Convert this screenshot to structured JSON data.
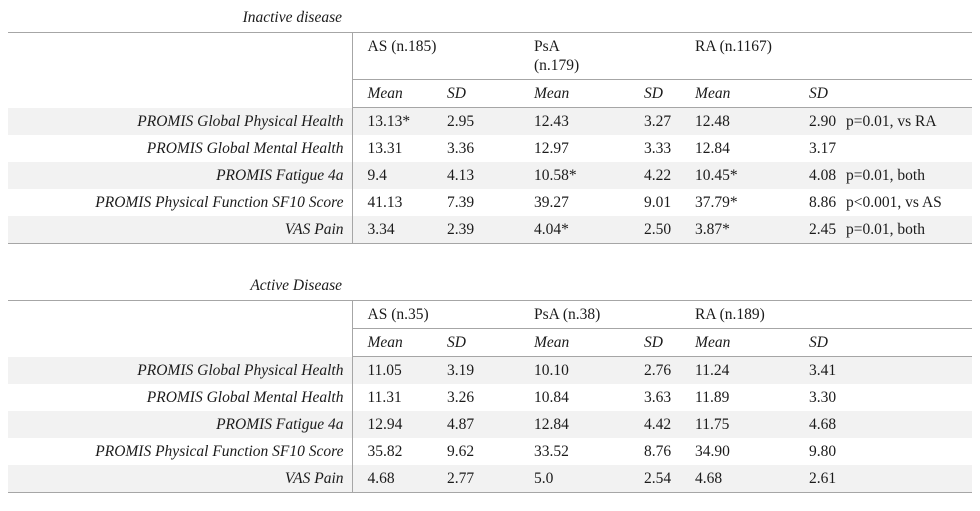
{
  "colors": {
    "row_shade": "#f2f2f2",
    "line": "#a6a6a6",
    "text": "#1b1b1b",
    "page_bg": "#ffffff"
  },
  "tables": [
    {
      "title": "Inactive disease",
      "groups": [
        "AS (n.185)",
        "PsA\n(n.179)",
        "RA (n.1167)"
      ],
      "stat_headers": [
        "Mean",
        "SD",
        "Mean",
        "SD",
        "Mean",
        "SD"
      ],
      "rows": [
        {
          "label": "PROMIS Global Physical Health",
          "values": [
            "13.13*",
            "2.95",
            "12.43",
            "3.27",
            "12.48",
            "2.90"
          ],
          "note": "p=0.01, vs RA"
        },
        {
          "label": "PROMIS Global Mental Health",
          "values": [
            "13.31",
            "3.36",
            "12.97",
            "3.33",
            "12.84",
            "3.17"
          ],
          "note": ""
        },
        {
          "label": "PROMIS Fatigue 4a",
          "values": [
            "9.4",
            "4.13",
            "10.58*",
            "4.22",
            "10.45*",
            "4.08"
          ],
          "note": "p=0.01, both"
        },
        {
          "label": "PROMIS Physical Function SF10 Score",
          "values": [
            "41.13",
            "7.39",
            "39.27",
            "9.01",
            "37.79*",
            "8.86"
          ],
          "note": "p<0.001, vs AS"
        },
        {
          "label": "VAS Pain",
          "values": [
            "3.34",
            "2.39",
            "4.04*",
            "2.50",
            "3.87*",
            "2.45"
          ],
          "note": "p=0.01, both"
        }
      ]
    },
    {
      "title": "Active Disease",
      "groups": [
        "AS (n.35)",
        "PsA (n.38)",
        "RA (n.189)"
      ],
      "stat_headers": [
        "Mean",
        "SD",
        "Mean",
        "SD",
        "Mean",
        "SD"
      ],
      "rows": [
        {
          "label": "PROMIS Global Physical Health",
          "values": [
            "11.05",
            "3.19",
            "10.10",
            "2.76",
            "11.24",
            "3.41"
          ],
          "note": ""
        },
        {
          "label": "PROMIS Global Mental Health",
          "values": [
            "11.31",
            "3.26",
            "10.84",
            "3.63",
            "11.89",
            "3.30"
          ],
          "note": ""
        },
        {
          "label": "PROMIS Fatigue 4a",
          "values": [
            "12.94",
            "4.87",
            "12.84",
            "4.42",
            "11.75",
            "4.68"
          ],
          "note": ""
        },
        {
          "label": "PROMIS Physical Function SF10 Score",
          "values": [
            "35.82",
            "9.62",
            "33.52",
            "8.76",
            "34.90",
            "9.80"
          ],
          "note": ""
        },
        {
          "label": "VAS Pain",
          "values": [
            "4.68",
            "2.77",
            "5.0",
            "2.54",
            "4.68",
            "2.61"
          ],
          "note": ""
        }
      ]
    }
  ]
}
